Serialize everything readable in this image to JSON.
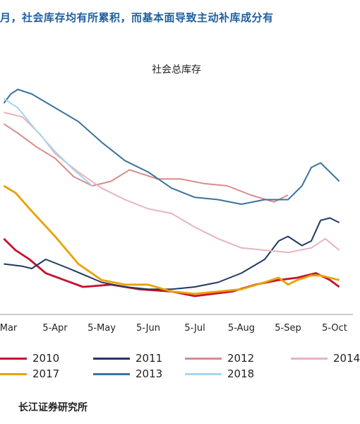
{
  "headline": "月，社会库存均有所累积，而基本面导致主动补库成分有",
  "source": "长江证券研究所",
  "chart_data": {
    "type": "line",
    "title": "社会总库存",
    "xlabel": "",
    "ylabel": "",
    "x_ticks": [
      "Mar",
      "5-Apr",
      "5-May",
      "5-Jun",
      "5-Jul",
      "5-Aug",
      "5-Sep",
      "5-Oct"
    ],
    "ylim": [
      0,
      100
    ],
    "grid": false,
    "legend_position": "bottom",
    "series": [
      {
        "name": "2010",
        "color": "#c8102e",
        "x": [
          -0.1,
          0.15,
          0.45,
          0.8,
          1.2,
          1.6,
          2.2,
          2.8,
          3.5,
          4.0,
          4.8,
          5.3,
          5.8,
          6.2,
          6.6,
          6.9,
          7.1
        ],
        "y": [
          33,
          28,
          24,
          18,
          15,
          12,
          13,
          11,
          10,
          8,
          10,
          13,
          15,
          16,
          18,
          15,
          12
        ]
      },
      {
        "name": "2011",
        "color": "#1f3a5f",
        "x": [
          -0.1,
          0.3,
          0.5,
          0.8,
          1.3,
          2.0,
          2.5,
          3.0,
          3.5,
          4.0,
          4.5,
          5.0,
          5.5,
          5.8,
          6.0,
          6.3,
          6.5,
          6.7,
          6.9,
          7.1
        ],
        "y": [
          22,
          21,
          20,
          24,
          20,
          14,
          12,
          11,
          11,
          12,
          14,
          18,
          24,
          32,
          34,
          30,
          32,
          41,
          42,
          40
        ]
      },
      {
        "name": "2012",
        "color": "#d98c8c",
        "x": [
          -0.1,
          0.2,
          0.6,
          1.0,
          1.4,
          1.8,
          2.2,
          2.6,
          3.2,
          3.7,
          4.2,
          4.7,
          5.2,
          5.7,
          6.0
        ],
        "y": [
          83,
          79,
          73,
          68,
          60,
          56,
          58,
          63,
          59,
          59,
          57,
          56,
          52,
          49,
          52
        ]
      },
      {
        "name": "2014",
        "color": "#e8b4bc",
        "x": [
          -0.1,
          0.3,
          0.7,
          1.0,
          1.5,
          2.0,
          2.5,
          3.0,
          3.5,
          4.0,
          4.5,
          5.0,
          5.5,
          6.0,
          6.5,
          6.8,
          7.1
        ],
        "y": [
          88,
          86,
          78,
          70,
          62,
          55,
          50,
          46,
          44,
          38,
          33,
          29,
          28,
          27,
          29,
          33,
          28
        ]
      },
      {
        "name": "2017",
        "color": "#e8a200",
        "x": [
          -0.1,
          0.15,
          0.5,
          1.0,
          1.5,
          2.0,
          2.5,
          3.0,
          3.5,
          4.0,
          4.5,
          5.0,
          5.5,
          5.8,
          6.0,
          6.2,
          6.5,
          6.7,
          7.1
        ],
        "y": [
          56,
          53,
          45,
          34,
          22,
          15,
          13,
          13,
          10,
          9,
          10,
          11,
          14,
          16,
          13,
          15,
          17,
          17,
          15
        ]
      },
      {
        "name": "2013",
        "color": "#3b73a0",
        "x": [
          -0.1,
          0.05,
          0.2,
          0.5,
          1.0,
          1.5,
          2.0,
          2.5,
          3.0,
          3.5,
          4.0,
          4.5,
          5.0,
          5.5,
          6.0,
          6.3,
          6.5,
          6.7,
          7.1
        ],
        "y": [
          92,
          96,
          98,
          96,
          90,
          84,
          75,
          67,
          62,
          55,
          51,
          50,
          48,
          50,
          50,
          56,
          64,
          66,
          58
        ]
      },
      {
        "name": "2018",
        "color": "#a8d5ec",
        "x": [
          -0.1,
          0.2,
          0.6,
          1.0,
          1.4,
          1.8
        ],
        "y": [
          94,
          90,
          80,
          71,
          63,
          56
        ]
      }
    ]
  }
}
